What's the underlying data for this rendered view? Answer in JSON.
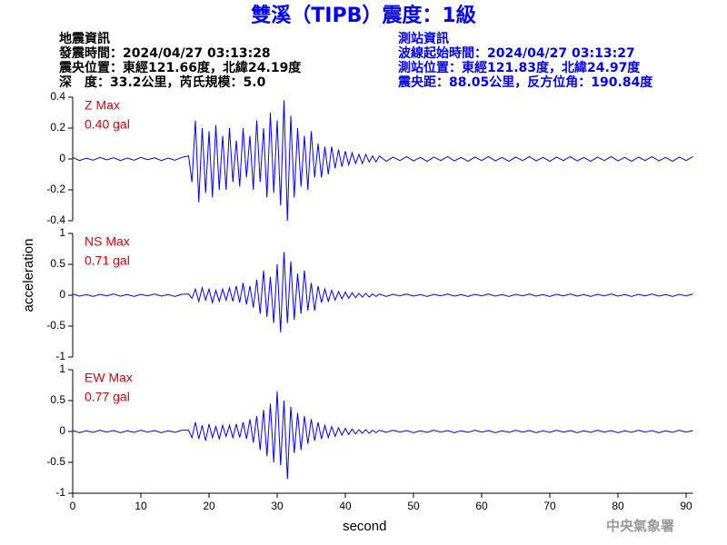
{
  "title": "雙溪（TIPB）震度：1級",
  "header": {
    "left": [
      "地震資訊",
      "發震時間：2024/04/27 03:13:28",
      "震央位置：東經121.66度，北緯24.19度",
      "深　度：33.2公里，芮氏規模：5.0"
    ],
    "right": [
      "測站資訊",
      "波線起始時間：2024/04/27 03:13:27",
      "測站位置：東經121.83度，北緯24.97度",
      "震央距：88.05公里，反方位角：190.84度"
    ]
  },
  "footer": "中央氣象署",
  "chart_data": [
    {
      "type": "line",
      "label": "Z Max",
      "max_label": "0.40 gal",
      "color": "#0000ff",
      "xlim": [
        0,
        91
      ],
      "ylim": [
        -0.4,
        0.4
      ],
      "yticks": [
        -0.4,
        -0.2,
        0,
        0.2,
        0.4
      ],
      "x": [
        0,
        1,
        2,
        3,
        4,
        5,
        6,
        7,
        8,
        9,
        10,
        11,
        12,
        13,
        14,
        15,
        16,
        17,
        17.5,
        18,
        18.5,
        19,
        19.5,
        20,
        20.5,
        21,
        21.5,
        22,
        22.5,
        23,
        23.5,
        24,
        24.5,
        25,
        25.5,
        26,
        26.5,
        27,
        27.5,
        28,
        28.5,
        29,
        29.5,
        30,
        30.5,
        31,
        31.5,
        32,
        32.5,
        33,
        33.5,
        34,
        34.5,
        35,
        35.5,
        36,
        36.5,
        37,
        37.5,
        38,
        38.5,
        39,
        39.5,
        40,
        40.5,
        41,
        41.5,
        42,
        42.5,
        43,
        43.5,
        44,
        44.5,
        45,
        46,
        47,
        48,
        49,
        50,
        51,
        52,
        53,
        54,
        55,
        56,
        57,
        58,
        59,
        60,
        61,
        62,
        63,
        64,
        65,
        66,
        67,
        68,
        69,
        70,
        71,
        72,
        73,
        74,
        75,
        76,
        77,
        78,
        79,
        80,
        81,
        82,
        83,
        84,
        85,
        86,
        87,
        88,
        89,
        90,
        91
      ],
      "values": [
        0.01,
        -0.01,
        0.005,
        -0.008,
        0.01,
        -0.006,
        0.008,
        -0.01,
        0.006,
        -0.008,
        0.01,
        -0.005,
        0.008,
        -0.01,
        0.006,
        -0.008,
        0.01,
        0.02,
        -0.15,
        0.25,
        -0.28,
        0.2,
        -0.22,
        0.18,
        -0.25,
        0.22,
        -0.2,
        0.15,
        -0.2,
        0.2,
        -0.15,
        0.12,
        -0.18,
        0.2,
        -0.12,
        0.15,
        -0.2,
        0.25,
        -0.15,
        0.2,
        -0.25,
        0.3,
        -0.22,
        0.25,
        -0.3,
        0.38,
        -0.4,
        0.28,
        -0.25,
        0.2,
        -0.18,
        0.15,
        -0.2,
        0.18,
        -0.12,
        0.1,
        -0.12,
        0.08,
        -0.1,
        0.08,
        -0.06,
        0.06,
        -0.05,
        0.05,
        -0.04,
        0.04,
        -0.03,
        0.03,
        -0.03,
        0.03,
        -0.02,
        0.02,
        -0.02,
        0.02,
        -0.015,
        0.012,
        -0.01,
        0.015,
        -0.012,
        0.01,
        -0.015,
        0.012,
        -0.01,
        0.015,
        -0.012,
        0.01,
        -0.015,
        0.012,
        -0.01,
        0.015,
        -0.012,
        0.01,
        -0.015,
        0.012,
        -0.01,
        0.015,
        -0.012,
        0.01,
        -0.015,
        0.012,
        -0.01,
        0.015,
        -0.012,
        0.01,
        -0.015,
        0.012,
        -0.01,
        0.015,
        -0.012,
        0.01,
        -0.015,
        0.012,
        -0.01,
        0.015,
        -0.012,
        0.01,
        -0.015,
        0.012,
        -0.01,
        0.015
      ]
    },
    {
      "type": "line",
      "label": "NS Max",
      "max_label": "0.71 gal",
      "color": "#0000ff",
      "ylabel": "acceleration",
      "xlim": [
        0,
        91
      ],
      "ylim": [
        -1,
        1
      ],
      "yticks": [
        -1,
        -0.5,
        0,
        0.5,
        1
      ],
      "x": [
        0,
        1,
        2,
        3,
        4,
        5,
        6,
        7,
        8,
        9,
        10,
        11,
        12,
        13,
        14,
        15,
        16,
        17,
        17.5,
        18,
        18.5,
        19,
        19.5,
        20,
        20.5,
        21,
        21.5,
        22,
        22.5,
        23,
        23.5,
        24,
        24.5,
        25,
        25.5,
        26,
        26.5,
        27,
        27.5,
        28,
        28.5,
        29,
        29.5,
        30,
        30.5,
        31,
        31.5,
        32,
        32.5,
        33,
        33.5,
        34,
        34.5,
        35,
        35.5,
        36,
        36.5,
        37,
        37.5,
        38,
        38.5,
        39,
        39.5,
        40,
        40.5,
        41,
        41.5,
        42,
        42.5,
        43,
        43.5,
        44,
        44.5,
        45,
        46,
        47,
        48,
        49,
        50,
        51,
        52,
        53,
        54,
        55,
        56,
        57,
        58,
        59,
        60,
        61,
        62,
        63,
        64,
        65,
        66,
        67,
        68,
        69,
        70,
        71,
        72,
        73,
        74,
        75,
        76,
        77,
        78,
        79,
        80,
        81,
        82,
        83,
        84,
        85,
        86,
        87,
        88,
        89,
        90,
        91
      ],
      "values": [
        0.02,
        -0.015,
        0.01,
        -0.02,
        0.015,
        -0.01,
        0.02,
        -0.015,
        0.01,
        -0.02,
        0.015,
        -0.01,
        0.02,
        -0.015,
        0.01,
        -0.02,
        0.015,
        0.02,
        -0.05,
        0.1,
        -0.1,
        0.12,
        -0.08,
        0.1,
        -0.12,
        0.08,
        -0.1,
        0.1,
        -0.08,
        0.12,
        -0.1,
        0.15,
        -0.12,
        0.2,
        -0.15,
        0.15,
        -0.2,
        0.25,
        -0.3,
        0.4,
        -0.35,
        0.3,
        -0.45,
        0.5,
        -0.6,
        0.7,
        -0.45,
        0.55,
        -0.4,
        0.35,
        -0.3,
        0.4,
        -0.25,
        0.2,
        -0.25,
        0.15,
        -0.12,
        0.1,
        -0.1,
        0.08,
        -0.08,
        0.06,
        -0.06,
        0.05,
        -0.05,
        0.04,
        -0.04,
        0.03,
        -0.03,
        0.03,
        -0.03,
        0.02,
        -0.02,
        0.02,
        -0.02,
        0.015,
        -0.01,
        0.02,
        -0.015,
        0.01,
        -0.02,
        0.015,
        -0.01,
        0.02,
        -0.015,
        0.01,
        -0.02,
        0.015,
        -0.01,
        0.02,
        -0.015,
        0.01,
        -0.02,
        0.015,
        -0.01,
        0.02,
        -0.015,
        0.01,
        -0.02,
        0.015,
        -0.01,
        0.02,
        -0.015,
        0.01,
        -0.02,
        0.015,
        -0.01,
        0.02,
        -0.015,
        0.01,
        -0.02,
        0.015,
        -0.01,
        0.02,
        -0.015,
        0.01,
        -0.02,
        0.015,
        -0.01,
        0.02
      ]
    },
    {
      "type": "line",
      "label": "EW Max",
      "max_label": "0.77 gal",
      "color": "#0000ff",
      "xlabel": "second",
      "xlim": [
        0,
        91
      ],
      "xticks": [
        0,
        10,
        20,
        30,
        40,
        50,
        60,
        70,
        80,
        90
      ],
      "ylim": [
        -1,
        1
      ],
      "yticks": [
        -1,
        -0.5,
        0,
        0.5,
        1
      ],
      "x": [
        0,
        1,
        2,
        3,
        4,
        5,
        6,
        7,
        8,
        9,
        10,
        11,
        12,
        13,
        14,
        15,
        16,
        17,
        17.5,
        18,
        18.5,
        19,
        19.5,
        20,
        20.5,
        21,
        21.5,
        22,
        22.5,
        23,
        23.5,
        24,
        24.5,
        25,
        25.5,
        26,
        26.5,
        27,
        27.5,
        28,
        28.5,
        29,
        29.5,
        30,
        30.5,
        31,
        31.5,
        32,
        32.5,
        33,
        33.5,
        34,
        34.5,
        35,
        35.5,
        36,
        36.5,
        37,
        37.5,
        38,
        38.5,
        39,
        39.5,
        40,
        40.5,
        41,
        41.5,
        42,
        42.5,
        43,
        43.5,
        44,
        44.5,
        45,
        46,
        47,
        48,
        49,
        50,
        51,
        52,
        53,
        54,
        55,
        56,
        57,
        58,
        59,
        60,
        61,
        62,
        63,
        64,
        65,
        66,
        67,
        68,
        69,
        70,
        71,
        72,
        73,
        74,
        75,
        76,
        77,
        78,
        79,
        80,
        81,
        82,
        83,
        84,
        85,
        86,
        87,
        88,
        89,
        90,
        91
      ],
      "values": [
        0.015,
        -0.02,
        0.01,
        -0.015,
        0.02,
        -0.01,
        0.015,
        -0.02,
        0.01,
        -0.015,
        0.02,
        -0.01,
        0.015,
        -0.02,
        0.01,
        -0.015,
        0.02,
        0.02,
        -0.1,
        0.15,
        -0.12,
        0.1,
        -0.15,
        0.12,
        -0.1,
        0.08,
        -0.12,
        0.1,
        -0.08,
        0.1,
        -0.1,
        0.12,
        -0.1,
        0.15,
        -0.12,
        0.2,
        -0.18,
        0.25,
        -0.3,
        0.35,
        -0.4,
        0.45,
        -0.5,
        0.65,
        -0.55,
        0.5,
        -0.77,
        0.4,
        -0.35,
        0.3,
        -0.3,
        0.25,
        -0.2,
        0.2,
        -0.15,
        0.15,
        -0.12,
        0.1,
        -0.1,
        0.08,
        -0.08,
        0.06,
        -0.06,
        0.05,
        -0.05,
        0.04,
        -0.04,
        0.03,
        -0.03,
        0.03,
        -0.03,
        0.02,
        -0.02,
        0.02,
        -0.015,
        0.02,
        -0.01,
        0.015,
        -0.02,
        0.01,
        -0.015,
        0.02,
        -0.01,
        0.015,
        -0.02,
        0.01,
        -0.015,
        0.02,
        -0.01,
        0.015,
        -0.02,
        0.01,
        -0.015,
        0.02,
        -0.01,
        0.015,
        -0.02,
        0.01,
        -0.015,
        0.02,
        -0.01,
        0.015,
        -0.02,
        0.01,
        -0.015,
        0.02,
        -0.01,
        0.015,
        -0.02,
        0.01,
        -0.015,
        0.02,
        -0.01,
        0.015,
        -0.02,
        0.01,
        -0.015,
        0.02,
        -0.01,
        0.015
      ]
    }
  ]
}
